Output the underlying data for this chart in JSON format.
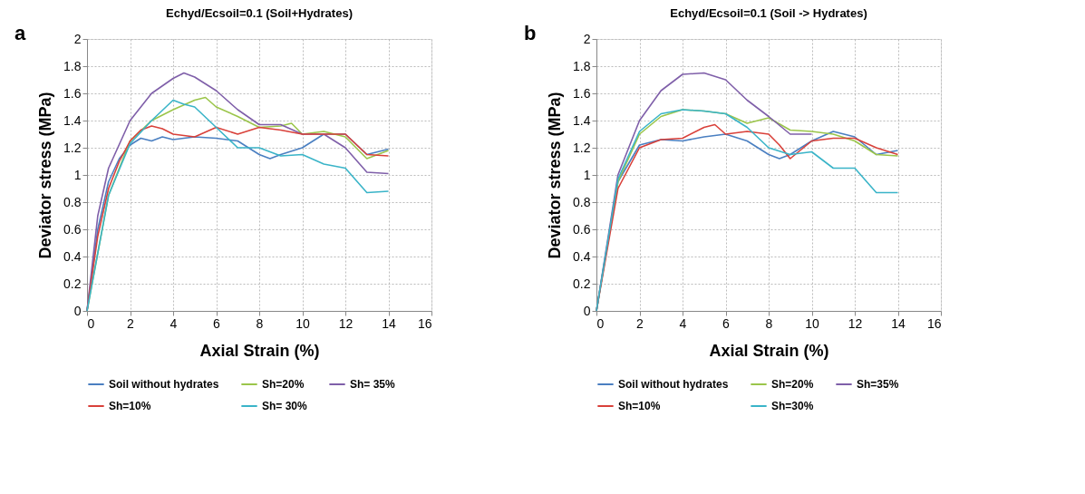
{
  "chart_data": [
    {
      "type": "line",
      "title": "Echyd/Ecsoil=0.1 (Soil+Hydrates)",
      "xlabel": "Axial  Strain (%)",
      "ylabel": "Deviator  stress (MPa)",
      "annotations": [
        "a"
      ],
      "xlim": [
        0,
        16
      ],
      "xticks": [
        0,
        2,
        4,
        6,
        8,
        10,
        12,
        14,
        16
      ],
      "ylim": [
        0,
        2
      ],
      "yticks": [
        0,
        0.2,
        0.4,
        0.6,
        0.8,
        1,
        1.2,
        1.4,
        1.6,
        1.8,
        2
      ],
      "grid": true,
      "legend": "bottom",
      "series": [
        {
          "name": "Soil without hydrates",
          "color": "#4a7fc1",
          "x": [
            0,
            0.5,
            1,
            1.5,
            2,
            2.5,
            3,
            3.5,
            4,
            5,
            6,
            7,
            8,
            8.5,
            9,
            10,
            11,
            12,
            13,
            14
          ],
          "values": [
            0,
            0.6,
            0.95,
            1.12,
            1.22,
            1.27,
            1.25,
            1.28,
            1.26,
            1.28,
            1.27,
            1.25,
            1.15,
            1.12,
            1.15,
            1.2,
            1.3,
            1.3,
            1.15,
            1.19
          ]
        },
        {
          "name": "Sh=20%",
          "color": "#9bc54a",
          "x": [
            0,
            1,
            2,
            3,
            4,
            5,
            5.5,
            6,
            7,
            8,
            9,
            9.5,
            10,
            11,
            12,
            13,
            14
          ],
          "values": [
            0,
            0.85,
            1.25,
            1.4,
            1.48,
            1.55,
            1.57,
            1.5,
            1.43,
            1.35,
            1.36,
            1.38,
            1.3,
            1.32,
            1.28,
            1.12,
            1.18
          ]
        },
        {
          "name": "Sh= 35%",
          "color": "#7f5fa9",
          "x": [
            0,
            0.5,
            1,
            2,
            3,
            4,
            4.5,
            5,
            6,
            7,
            8,
            9,
            10,
            11,
            12,
            13,
            14
          ],
          "values": [
            0,
            0.7,
            1.05,
            1.4,
            1.6,
            1.71,
            1.75,
            1.72,
            1.62,
            1.48,
            1.37,
            1.37,
            1.3,
            1.3,
            1.2,
            1.02,
            1.01
          ]
        },
        {
          "name": "Sh=10%",
          "color": "#d9413a",
          "x": [
            0,
            0.5,
            1,
            1.5,
            2,
            2.5,
            3,
            3.5,
            4,
            5,
            6,
            7,
            8,
            9,
            10,
            11,
            12,
            13,
            14
          ],
          "values": [
            0,
            0.55,
            0.9,
            1.1,
            1.25,
            1.33,
            1.36,
            1.34,
            1.3,
            1.28,
            1.35,
            1.3,
            1.35,
            1.33,
            1.3,
            1.3,
            1.3,
            1.15,
            1.14
          ]
        },
        {
          "name": "Sh= 30%",
          "color": "#3ab4c8",
          "x": [
            0,
            1,
            2,
            3,
            4,
            4.5,
            5,
            6,
            7,
            8,
            9,
            10,
            11,
            12,
            13,
            14
          ],
          "values": [
            0,
            0.85,
            1.23,
            1.4,
            1.55,
            1.52,
            1.5,
            1.35,
            1.2,
            1.2,
            1.14,
            1.15,
            1.08,
            1.05,
            0.87,
            0.88
          ]
        }
      ]
    },
    {
      "type": "line",
      "title": "Echyd/Ecsoil=0.1 (Soil -> Hydrates)",
      "xlabel": "Axial  Strain (%)",
      "ylabel": "Deviator  stress (MPa)",
      "annotations": [
        "b"
      ],
      "xlim": [
        0,
        16
      ],
      "xticks": [
        0,
        2,
        4,
        6,
        8,
        10,
        12,
        14,
        16
      ],
      "ylim": [
        0,
        2
      ],
      "yticks": [
        0,
        0.2,
        0.4,
        0.6,
        0.8,
        1,
        1.2,
        1.4,
        1.6,
        1.8,
        2
      ],
      "grid": true,
      "legend": "bottom",
      "series": [
        {
          "name": "Soil without hydrates",
          "color": "#4a7fc1",
          "x": [
            0,
            1,
            2,
            3,
            4,
            5,
            6,
            7,
            8,
            8.5,
            9,
            10,
            11,
            12,
            13,
            14
          ],
          "values": [
            0,
            0.95,
            1.22,
            1.26,
            1.25,
            1.28,
            1.3,
            1.25,
            1.15,
            1.12,
            1.15,
            1.25,
            1.32,
            1.28,
            1.15,
            1.18
          ]
        },
        {
          "name": "Sh=20%",
          "color": "#9bc54a",
          "x": [
            0,
            1,
            2,
            3,
            4,
            5,
            6,
            7,
            8,
            9,
            10,
            11,
            12,
            13,
            14
          ],
          "values": [
            0,
            0.95,
            1.3,
            1.43,
            1.48,
            1.47,
            1.45,
            1.38,
            1.42,
            1.33,
            1.32,
            1.3,
            1.25,
            1.15,
            1.14
          ]
        },
        {
          "name": "Sh=35%",
          "color": "#7f5fa9",
          "x": [
            0,
            1,
            2,
            3,
            4,
            5,
            6,
            7,
            8,
            9,
            10
          ],
          "values": [
            0,
            1.0,
            1.4,
            1.62,
            1.74,
            1.75,
            1.7,
            1.55,
            1.43,
            1.3,
            1.3
          ]
        },
        {
          "name": "Sh=10%",
          "color": "#d9413a",
          "x": [
            0,
            1,
            2,
            3,
            4,
            5,
            5.5,
            6,
            7,
            8,
            8.5,
            9,
            10,
            11,
            12,
            13,
            14
          ],
          "values": [
            0,
            0.9,
            1.2,
            1.26,
            1.27,
            1.35,
            1.37,
            1.3,
            1.32,
            1.3,
            1.22,
            1.12,
            1.25,
            1.27,
            1.27,
            1.2,
            1.15
          ]
        },
        {
          "name": "Sh=30%",
          "color": "#3ab4c8",
          "x": [
            0,
            1,
            2,
            3,
            4,
            5,
            6,
            7,
            8,
            9,
            10,
            11,
            12,
            13,
            14
          ],
          "values": [
            0,
            0.97,
            1.32,
            1.45,
            1.48,
            1.47,
            1.45,
            1.35,
            1.2,
            1.15,
            1.17,
            1.05,
            1.05,
            0.87,
            0.87
          ]
        }
      ]
    }
  ]
}
